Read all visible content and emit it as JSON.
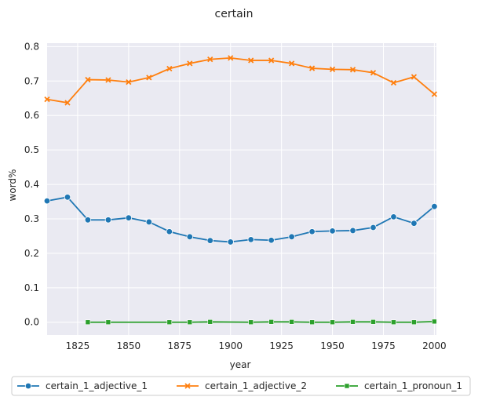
{
  "chart_data": {
    "type": "line",
    "title": "certain",
    "xlabel": "year",
    "ylabel": "word%",
    "xlim": [
      1810,
      2001
    ],
    "ylim": [
      -0.037,
      0.81
    ],
    "xticks": [
      1825,
      1850,
      1875,
      1900,
      1925,
      1950,
      1975,
      2000
    ],
    "yticks": [
      0.0,
      0.1,
      0.2,
      0.3,
      0.4,
      0.5,
      0.6,
      0.7,
      0.8
    ],
    "xtick_labels": [
      "1825",
      "1850",
      "1875",
      "1900",
      "1925",
      "1950",
      "1975",
      "2000"
    ],
    "ytick_labels": [
      "0.0",
      "0.1",
      "0.2",
      "0.3",
      "0.4",
      "0.5",
      "0.6",
      "0.7",
      "0.8"
    ],
    "grid": true,
    "legend_position": "bottom",
    "series": [
      {
        "name": "certain_1_adjective_1",
        "color": "#1f77b4",
        "marker": "circle",
        "x": [
          1810,
          1820,
          1830,
          1840,
          1850,
          1860,
          1870,
          1880,
          1890,
          1900,
          1910,
          1920,
          1930,
          1940,
          1950,
          1960,
          1970,
          1980,
          1990,
          2000
        ],
        "values": [
          0.352,
          0.363,
          0.297,
          0.297,
          0.303,
          0.291,
          0.263,
          0.248,
          0.237,
          0.233,
          0.24,
          0.238,
          0.248,
          0.263,
          0.265,
          0.266,
          0.275,
          0.306,
          0.287,
          0.336
        ]
      },
      {
        "name": "certain_1_adjective_2",
        "color": "#ff7f0e",
        "marker": "x",
        "x": [
          1810,
          1820,
          1830,
          1840,
          1850,
          1860,
          1870,
          1880,
          1890,
          1900,
          1910,
          1920,
          1930,
          1940,
          1950,
          1960,
          1970,
          1980,
          1990,
          2000
        ],
        "values": [
          0.647,
          0.637,
          0.704,
          0.703,
          0.697,
          0.71,
          0.736,
          0.751,
          0.763,
          0.767,
          0.76,
          0.76,
          0.751,
          0.737,
          0.734,
          0.733,
          0.724,
          0.695,
          0.712,
          0.662
        ]
      },
      {
        "name": "certain_1_pronoun_1",
        "color": "#2ca02c",
        "marker": "square",
        "x": [
          1830,
          1840,
          1870,
          1880,
          1890,
          1910,
          1920,
          1930,
          1940,
          1950,
          1960,
          1970,
          1980,
          1990,
          2000
        ],
        "values": [
          0.0,
          0.0,
          0.0,
          0.0,
          0.001,
          0.0,
          0.001,
          0.001,
          0.0,
          0.0,
          0.001,
          0.001,
          0.0,
          0.0,
          0.002
        ]
      }
    ]
  }
}
